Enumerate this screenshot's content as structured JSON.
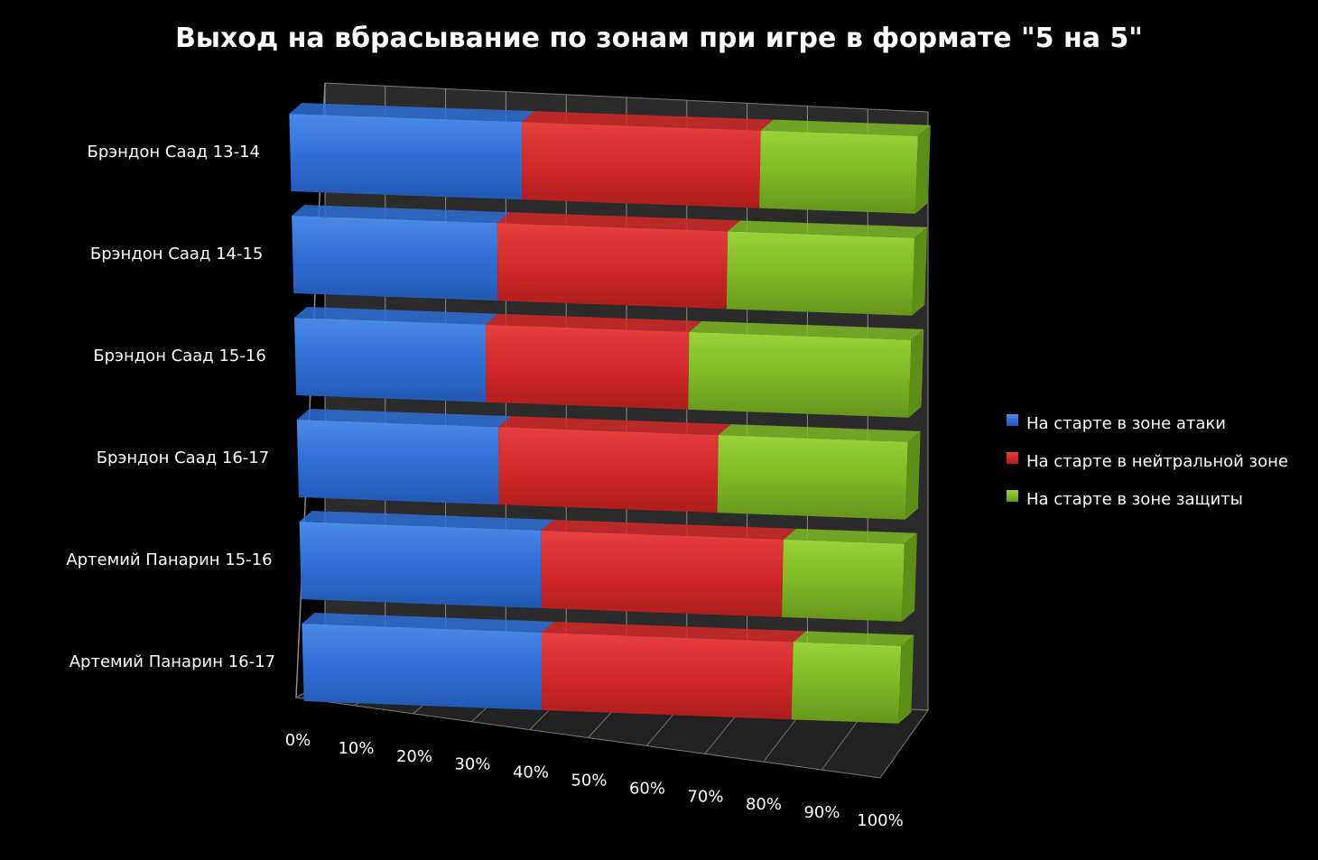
{
  "chart_data": {
    "type": "bar",
    "orientation": "horizontal",
    "stacked": "percent",
    "projection": "3d",
    "title": "Выход на вбрасывание по зонам при игре в формате \"5 на 5\"",
    "categories": [
      "Брэндон Саад 13-14",
      "Брэндон Саад 14-15",
      "Брэндон Саад 15-16",
      "Брэндон Саад 16-17",
      "Артемий Панарин 15-16",
      "Артемий Панарин 16-17"
    ],
    "series": [
      {
        "name": "На старте в зоне атаки",
        "color": "#2f6fd6",
        "values": [
          37,
          33,
          31,
          33,
          40,
          40
        ]
      },
      {
        "name": "На старте в нейтральной  зоне",
        "color": "#d42828",
        "values": [
          38,
          37,
          33,
          36,
          40,
          42
        ]
      },
      {
        "name": "На старте в зоне защиты",
        "color": "#80b826",
        "values": [
          25,
          30,
          36,
          31,
          20,
          18
        ]
      }
    ],
    "x_ticks": [
      "0%",
      "10%",
      "20%",
      "30%",
      "40%",
      "50%",
      "60%",
      "70%",
      "80%",
      "90%",
      "100%"
    ],
    "xlim": [
      0,
      100
    ],
    "grid": true,
    "legend_position": "right"
  }
}
